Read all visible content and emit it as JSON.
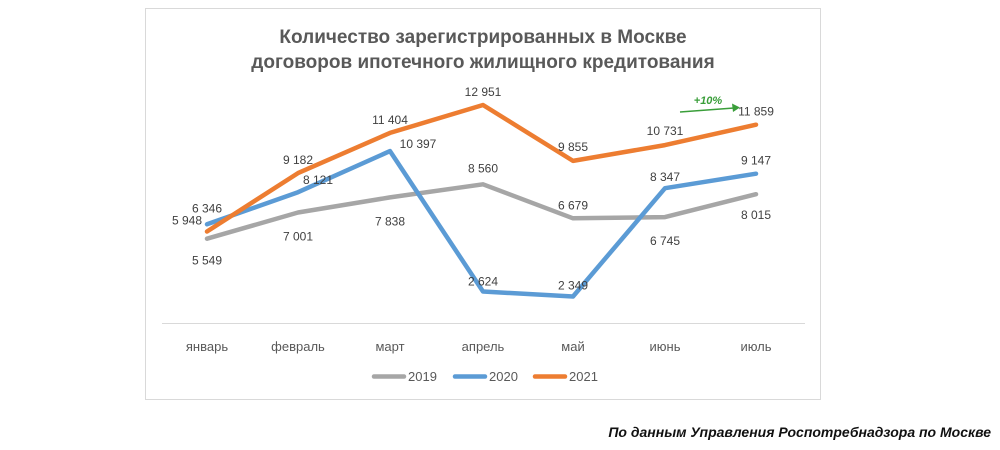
{
  "chart_data": {
    "type": "line",
    "title_lines": [
      "Количество зарегистрированных в Москве",
      "договоров ипотечного жилищного кредитования"
    ],
    "categories": [
      "январь",
      "февраль",
      "март",
      "апрель",
      "май",
      "июнь",
      "июль"
    ],
    "series": [
      {
        "name": "2019",
        "color": "#A6A6A6",
        "values": [
          5549,
          7001,
          7838,
          8560,
          6679,
          6745,
          8015
        ],
        "labels": [
          "5 549",
          "7 001",
          "7 838",
          "8 560",
          "6 679",
          "6 745",
          "8 015"
        ]
      },
      {
        "name": "2020",
        "color": "#5B9BD5",
        "values": [
          6346,
          8121,
          10397,
          2624,
          2349,
          8347,
          9147
        ],
        "labels": [
          "6 346",
          "8 121",
          "10 397",
          "2 624",
          "2 349",
          "8 347",
          "9 147"
        ]
      },
      {
        "name": "2021",
        "color": "#ED7D31",
        "values": [
          5948,
          9182,
          11404,
          12951,
          9855,
          10731,
          11859
        ],
        "labels": [
          "5 948",
          "9 182",
          "11 404",
          "12 951",
          "9 855",
          "10 731",
          "11 859"
        ]
      }
    ],
    "annotation": {
      "text": "+10%",
      "color": "#3A9E3A",
      "arrow": "arrow-right-icon"
    },
    "ylim": [
      0,
      14000
    ],
    "grid": false,
    "legend": "bottom"
  },
  "source_note": "По данным Управления Роспотребнадзора по Москве"
}
